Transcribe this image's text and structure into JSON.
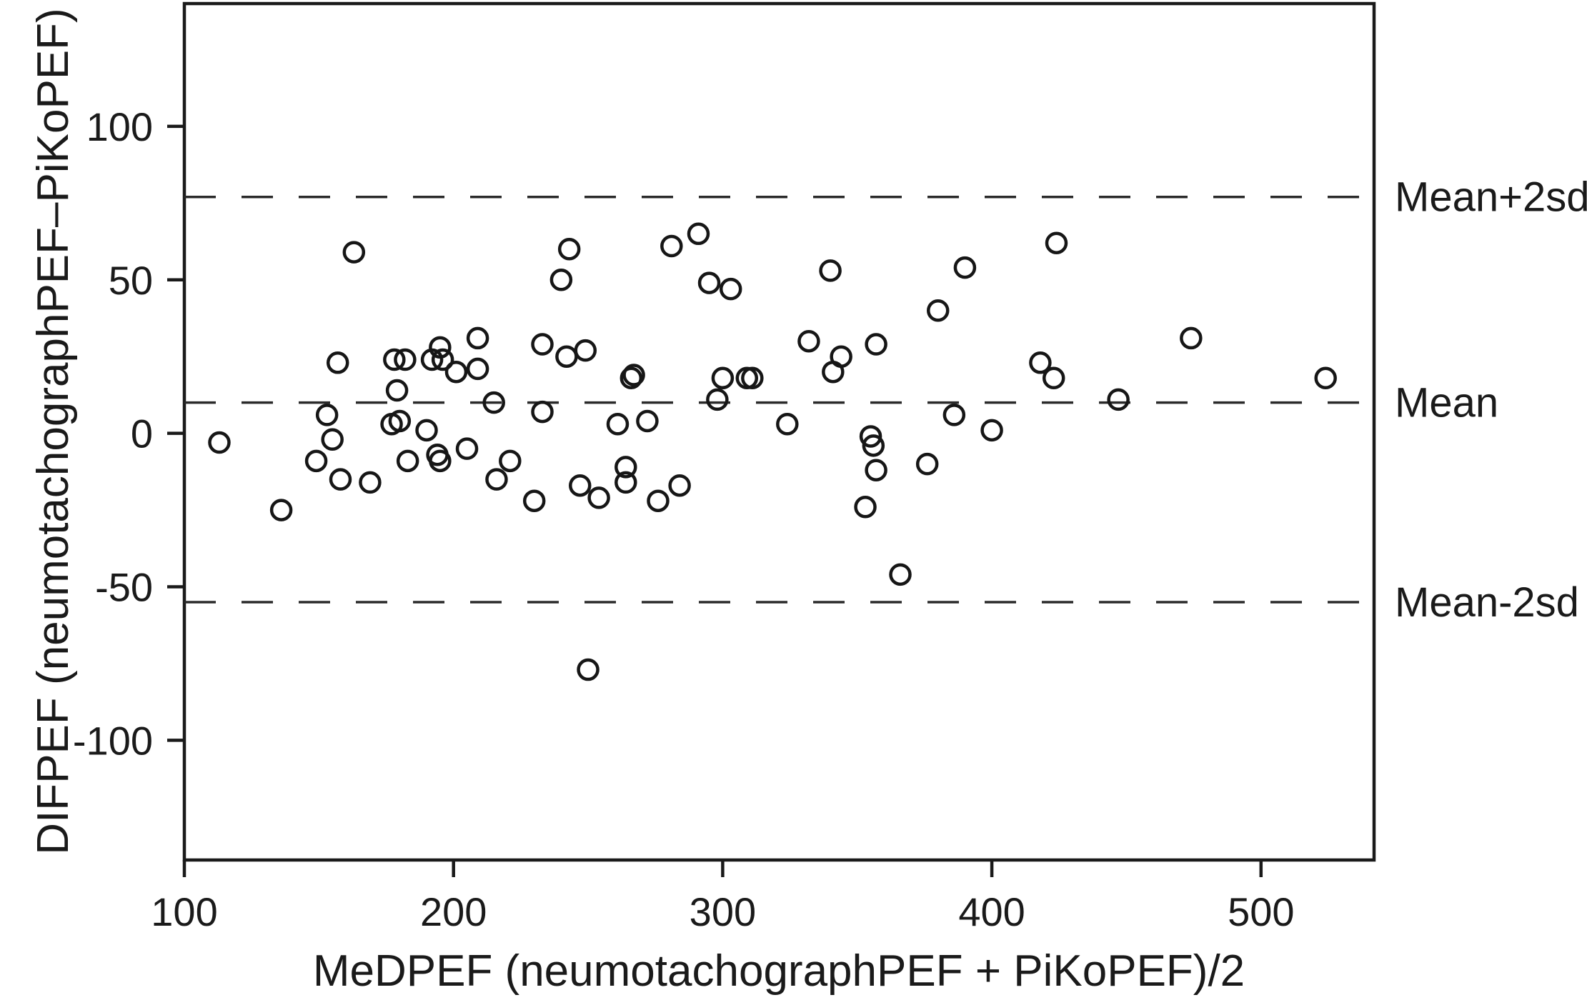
{
  "chart_data": {
    "type": "scatter",
    "title": "",
    "xlabel": "MeDPEF (neumotachographPEF + PiKoPEF)/2",
    "ylabel": "DIFPEF (neumotachographPEF–PiKoPEF)",
    "xlim": [
      100,
      542
    ],
    "ylim": [
      -139,
      140
    ],
    "grid": "off",
    "marker": "open-circle",
    "x_ticks": [
      100,
      200,
      300,
      400,
      500
    ],
    "x_tick_labels": [
      "100",
      "200",
      "300",
      "400",
      "500"
    ],
    "y_ticks": [
      -100,
      -50,
      0,
      50,
      100
    ],
    "y_tick_labels": [
      "-100",
      "-50",
      "0",
      "50",
      "100"
    ],
    "reference_lines": [
      {
        "value": 77,
        "label": "Mean+2sd"
      },
      {
        "value": 10,
        "label": "Mean"
      },
      {
        "value": -55,
        "label": "Mean-2sd"
      }
    ],
    "points": [
      [
        163,
        59
      ],
      [
        157,
        23
      ],
      [
        178,
        24
      ],
      [
        182,
        24
      ],
      [
        179,
        14
      ],
      [
        192,
        24
      ],
      [
        195,
        28
      ],
      [
        196,
        24
      ],
      [
        209,
        31
      ],
      [
        201,
        20
      ],
      [
        209,
        21
      ],
      [
        215,
        10
      ],
      [
        243,
        60
      ],
      [
        240,
        50
      ],
      [
        281,
        61
      ],
      [
        291,
        65
      ],
      [
        295,
        49
      ],
      [
        303,
        47
      ],
      [
        233,
        29
      ],
      [
        242,
        25
      ],
      [
        249,
        27
      ],
      [
        332,
        30
      ],
      [
        266,
        18
      ],
      [
        267,
        19
      ],
      [
        300,
        18
      ],
      [
        309,
        18
      ],
      [
        311,
        18
      ],
      [
        298,
        11
      ],
      [
        424,
        62
      ],
      [
        340,
        53
      ],
      [
        390,
        54
      ],
      [
        380,
        40
      ],
      [
        344,
        25
      ],
      [
        341,
        20
      ],
      [
        357,
        29
      ],
      [
        418,
        23
      ],
      [
        423,
        18
      ],
      [
        447,
        11
      ],
      [
        474,
        31
      ],
      [
        524,
        18
      ],
      [
        113,
        -3
      ],
      [
        153,
        6
      ],
      [
        155,
        -2
      ],
      [
        149,
        -9
      ],
      [
        158,
        -15
      ],
      [
        169,
        -16
      ],
      [
        136,
        -25
      ],
      [
        177,
        3
      ],
      [
        180,
        4
      ],
      [
        190,
        1
      ],
      [
        183,
        -9
      ],
      [
        194,
        -7
      ],
      [
        195,
        -9
      ],
      [
        205,
        -5
      ],
      [
        216,
        -15
      ],
      [
        233,
        7
      ],
      [
        261,
        3
      ],
      [
        272,
        4
      ],
      [
        324,
        3
      ],
      [
        221,
        -9
      ],
      [
        230,
        -22
      ],
      [
        247,
        -17
      ],
      [
        254,
        -21
      ],
      [
        264,
        -11
      ],
      [
        264,
        -16
      ],
      [
        276,
        -22
      ],
      [
        284,
        -17
      ],
      [
        250,
        -77
      ],
      [
        386,
        6
      ],
      [
        400,
        1
      ],
      [
        355,
        -1
      ],
      [
        356,
        -4
      ],
      [
        357,
        -12
      ],
      [
        376,
        -10
      ],
      [
        353,
        -24
      ],
      [
        366,
        -46
      ]
    ]
  }
}
